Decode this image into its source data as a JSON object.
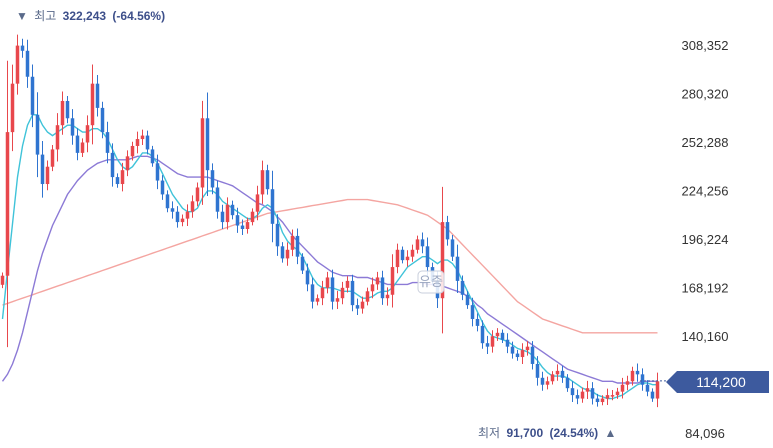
{
  "chart_data": {
    "type": "candlestick",
    "y_ticks": [
      308352,
      280320,
      252288,
      224256,
      196224,
      168192,
      140160,
      84096
    ],
    "ylim": [
      84096,
      322243
    ],
    "high_marker": {
      "prefix": "▼",
      "label": "최고",
      "value": "322,243",
      "change": "(-64.56%)"
    },
    "low_marker": {
      "label": "최저",
      "value": "91,700",
      "change": "(24.54%)",
      "suffix": "▲"
    },
    "current_price": {
      "label": "114,200",
      "value": 114200
    },
    "event_marker": {
      "label": "유증"
    },
    "colors": {
      "up": "#e8474c",
      "down": "#2f74d0",
      "ma_short": "#3fc3d9",
      "ma_mid": "#8c7ad6",
      "ma_long": "#f4a5a1",
      "price_tag": "#3d5a9e"
    },
    "series_close": [
      175000,
      258000,
      286000,
      308000,
      305000,
      290000,
      268000,
      245000,
      228000,
      238000,
      248000,
      262000,
      276000,
      266000,
      256000,
      246000,
      252000,
      262000,
      286000,
      272000,
      258000,
      246000,
      232000,
      228000,
      236000,
      244000,
      250000,
      254000,
      256000,
      248000,
      240000,
      230000,
      222000,
      214000,
      212000,
      206000,
      208000,
      212000,
      218000,
      226000,
      266000,
      236000,
      226000,
      212000,
      206000,
      216000,
      210000,
      204000,
      202000,
      206000,
      212000,
      222000,
      236000,
      225000,
      205000,
      192000,
      185000,
      190000,
      198000,
      186000,
      178000,
      170000,
      160000,
      162000,
      168000,
      174000,
      160000,
      162000,
      168000,
      172000,
      158000,
      156000,
      160000,
      166000,
      170000,
      174000,
      162000,
      164000,
      180000,
      190000,
      184000,
      186000,
      190000,
      196000,
      192000,
      180000,
      172000,
      162000,
      206000,
      196000,
      186000,
      172000,
      164000,
      158000,
      150000,
      146000,
      136000,
      134000,
      140000,
      142000,
      138000,
      134000,
      130000,
      128000,
      132000,
      134000,
      124000,
      116000,
      112000,
      114000,
      118000,
      120000,
      116000,
      110000,
      106000,
      104000,
      108000,
      110000,
      104000,
      102000,
      104000,
      106000,
      106000,
      108000,
      112000,
      114000,
      120000,
      118000,
      112000,
      108000,
      104000,
      114000
    ],
    "ma_short": [
      150000,
      178000,
      205000,
      232000,
      250000,
      262000,
      268000,
      268000,
      262000,
      258000,
      256000,
      258000,
      260000,
      262000,
      262000,
      260000,
      258000,
      258000,
      260000,
      260000,
      258000,
      254000,
      248000,
      242000,
      238000,
      236000,
      238000,
      242000,
      246000,
      246000,
      244000,
      240000,
      234000,
      228000,
      222000,
      218000,
      214000,
      212000,
      212000,
      214000,
      220000,
      224000,
      224000,
      222000,
      218000,
      216000,
      214000,
      212000,
      210000,
      208000,
      208000,
      210000,
      214000,
      216000,
      214000,
      208000,
      200000,
      195000,
      192000,
      190000,
      186000,
      180000,
      174000,
      170000,
      168000,
      168000,
      168000,
      167000,
      166000,
      166000,
      166000,
      164000,
      162000,
      162000,
      163000,
      165000,
      166000,
      166000,
      168000,
      172000,
      176000,
      180000,
      182000,
      184000,
      186000,
      186000,
      184000,
      182000,
      184000,
      184000,
      182000,
      178000,
      172000,
      166000,
      160000,
      154000,
      148000,
      143000,
      140000,
      139000,
      138000,
      137000,
      135000,
      133000,
      132000,
      131000,
      129000,
      126000,
      122000,
      119000,
      117000,
      117000,
      117000,
      116000,
      114000,
      112000,
      110000,
      109000,
      108000,
      106000,
      105000,
      104000,
      104000,
      105000,
      106000,
      108000,
      110000,
      112000,
      113000,
      113000,
      112000,
      112000
    ],
    "ma_mid": [
      114000,
      118000,
      124000,
      132000,
      142000,
      154000,
      166000,
      178000,
      188000,
      196000,
      204000,
      210000,
      216000,
      222000,
      226000,
      230000,
      233000,
      236000,
      238000,
      240000,
      241000,
      242000,
      242000,
      242000,
      242000,
      242000,
      243000,
      244000,
      244000,
      244000,
      243000,
      242000,
      240000,
      238000,
      236000,
      234000,
      233000,
      232000,
      232000,
      232000,
      232000,
      232000,
      231000,
      230000,
      229000,
      228000,
      227000,
      225000,
      223000,
      221000,
      219000,
      217000,
      216000,
      214000,
      212000,
      209000,
      206000,
      202000,
      198000,
      195000,
      192000,
      189000,
      186000,
      183000,
      181000,
      179000,
      177000,
      176000,
      175000,
      175000,
      175000,
      174000,
      174000,
      174000,
      173000,
      172000,
      171000,
      170000,
      170000,
      170000,
      170000,
      170000,
      171000,
      171000,
      171000,
      170000,
      170000,
      169000,
      169000,
      168000,
      167000,
      166000,
      165000,
      163000,
      161000,
      158000,
      156000,
      153000,
      151000,
      149000,
      147000,
      145000,
      143000,
      141000,
      139000,
      137000,
      135000,
      133000,
      131000,
      129000,
      127000,
      125000,
      123000,
      121000,
      120000,
      119000,
      118000,
      117000,
      116000,
      115000,
      114000,
      114000,
      114000,
      113000,
      113000,
      113000,
      113000,
      113000,
      114000,
      114000,
      114000,
      114000
    ],
    "ma_long": [
      158000,
      159000,
      160000,
      161000,
      162000,
      163000,
      164000,
      165000,
      166000,
      167000,
      168000,
      169000,
      170000,
      171000,
      172000,
      173000,
      174000,
      175000,
      176000,
      177000,
      178000,
      179000,
      180000,
      181000,
      182000,
      183000,
      184000,
      185000,
      186000,
      187000,
      188000,
      189000,
      190000,
      191000,
      192000,
      193000,
      194000,
      195000,
      196000,
      197000,
      198000,
      199000,
      200000,
      201000,
      202000,
      203000,
      204000,
      205000,
      206000,
      207000,
      208000,
      209000,
      210000,
      211000,
      211500,
      212000,
      212500,
      213000,
      213500,
      214000,
      214500,
      215000,
      215500,
      216000,
      216500,
      217000,
      217500,
      218000,
      218500,
      219000,
      219000,
      219000,
      219000,
      219000,
      218500,
      218000,
      217500,
      217000,
      216500,
      216000,
      215000,
      214000,
      213000,
      212000,
      211000,
      210000,
      208000,
      206000,
      204000,
      202000,
      199000,
      196000,
      193000,
      190000,
      187000,
      184000,
      181000,
      178000,
      175000,
      172000,
      169000,
      166000,
      163000,
      160000,
      158000,
      156000,
      154000,
      152000,
      150000,
      149000,
      148000,
      147000,
      146000,
      145000,
      144000,
      143000,
      142000,
      142000,
      142000,
      142000,
      142000,
      142000,
      142000,
      142000,
      142000,
      142000,
      142000,
      142000,
      142000,
      142000,
      142000,
      142000
    ]
  }
}
